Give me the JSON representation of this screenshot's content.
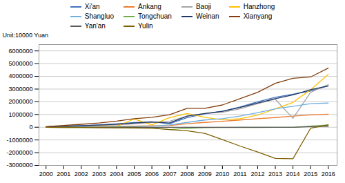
{
  "chart_data": {
    "type": "line",
    "ylabel": "Unit:10000 Yuan",
    "x": [
      2000,
      2001,
      2002,
      2003,
      2004,
      2005,
      2006,
      2007,
      2008,
      2009,
      2010,
      2011,
      2012,
      2013,
      2014,
      2015,
      2016
    ],
    "series": [
      {
        "name": "Xi'an",
        "color": "#4472C4",
        "values": [
          30000,
          80000,
          130000,
          180000,
          260000,
          370000,
          430000,
          280000,
          750000,
          1050000,
          1250000,
          1600000,
          2000000,
          2350000,
          2600000,
          2850000,
          3250000
        ]
      },
      {
        "name": "Ankang",
        "color": "#ED7D31",
        "values": [
          10000,
          20000,
          40000,
          55000,
          75000,
          90000,
          110000,
          130000,
          280000,
          380000,
          470000,
          570000,
          670000,
          760000,
          870000,
          970000,
          1020000
        ]
      },
      {
        "name": "Baoji",
        "color": "#A5A5A5",
        "values": [
          25000,
          55000,
          90000,
          140000,
          190000,
          270000,
          380000,
          470000,
          870000,
          1080000,
          1180000,
          1450000,
          1850000,
          2200000,
          700000,
          2750000,
          3350000
        ]
      },
      {
        "name": "Hanzhong",
        "color": "#FFC000",
        "values": [
          8000,
          15000,
          25000,
          40000,
          70000,
          650000,
          180000,
          750000,
          1080000,
          780000,
          580000,
          670000,
          950000,
          1450000,
          1950000,
          2950000,
          4150000
        ]
      },
      {
        "name": "Shangluo",
        "color": "#70B0E0",
        "values": [
          4000,
          8000,
          15000,
          25000,
          40000,
          50000,
          70000,
          180000,
          380000,
          570000,
          670000,
          870000,
          1150000,
          1450000,
          1650000,
          1850000,
          1900000
        ]
      },
      {
        "name": "Tongchuan",
        "color": "#70AD47",
        "values": [
          -8000,
          -15000,
          -25000,
          -25000,
          -15000,
          -8000,
          -40000,
          -180000,
          -90000,
          -40000,
          -25000,
          -15000,
          -15000,
          -8000,
          -8000,
          90000,
          180000
        ]
      },
      {
        "name": "Weinan",
        "color": "#1F3864",
        "values": [
          35000,
          70000,
          110000,
          165000,
          240000,
          330000,
          410000,
          330000,
          870000,
          1080000,
          1250000,
          1550000,
          1900000,
          2250000,
          2550000,
          2950000,
          3250000
        ]
      },
      {
        "name": "Xianyang",
        "color": "#843C0C",
        "values": [
          50000,
          140000,
          230000,
          330000,
          480000,
          670000,
          780000,
          980000,
          1480000,
          1480000,
          1750000,
          2250000,
          2750000,
          3450000,
          3850000,
          3950000,
          4650000
        ]
      },
      {
        "name": "Yan'an",
        "color": "#595959",
        "values": [
          -3000,
          -6000,
          -10000,
          -14000,
          -14000,
          -10000,
          -6000,
          -6000,
          -6000,
          -6000,
          -3000,
          -3000,
          -3000,
          -3000,
          -3000,
          50000,
          80000
        ]
      },
      {
        "name": "Yulin",
        "color": "#7F6000",
        "values": [
          -8000,
          -15000,
          -25000,
          -35000,
          -45000,
          -55000,
          -70000,
          -180000,
          -280000,
          -480000,
          -970000,
          -1480000,
          -1950000,
          -2450000,
          -2480000,
          -80000,
          180000
        ]
      }
    ],
    "xlim": [
      1999.6,
      2016.5
    ],
    "xticks": [
      2000,
      2001,
      2002,
      2003,
      2004,
      2005,
      2006,
      2007,
      2008,
      2009,
      2010,
      2011,
      2012,
      2013,
      2014,
      2015,
      2016
    ],
    "ylim": [
      -3000000,
      6500000
    ],
    "yticks": [
      -3000000,
      -2000000,
      -1000000,
      0,
      1000000,
      2000000,
      3000000,
      4000000,
      5000000,
      6000000
    ],
    "grid": true,
    "legend": "top"
  }
}
